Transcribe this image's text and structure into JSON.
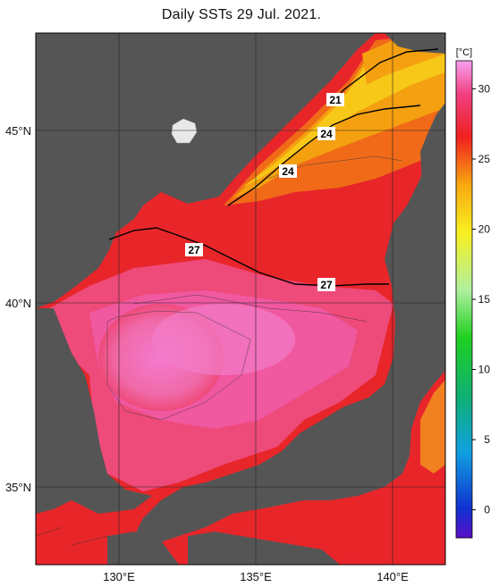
{
  "title": "Daily SSTs 29 Jul. 2021.",
  "units": "[°C]",
  "colorbar": {
    "ticks": [
      "30",
      "25",
      "20",
      "15",
      "10",
      "5",
      "0"
    ],
    "range": [
      -2,
      32
    ]
  },
  "axes": {
    "lat_labels": [
      "45°N",
      "40°N",
      "35°N"
    ],
    "lon_labels": [
      "130°E",
      "135°E",
      "140°E"
    ]
  },
  "contour_labels": [
    "21",
    "24",
    "24",
    "27",
    "27"
  ],
  "colors": {
    "land": "#555555",
    "warm_red": "#e8262a",
    "pink": "#ee4a7a",
    "hot_pink": "#f47ad0",
    "orange": "#f4a010",
    "yellow": "#f8d818"
  }
}
